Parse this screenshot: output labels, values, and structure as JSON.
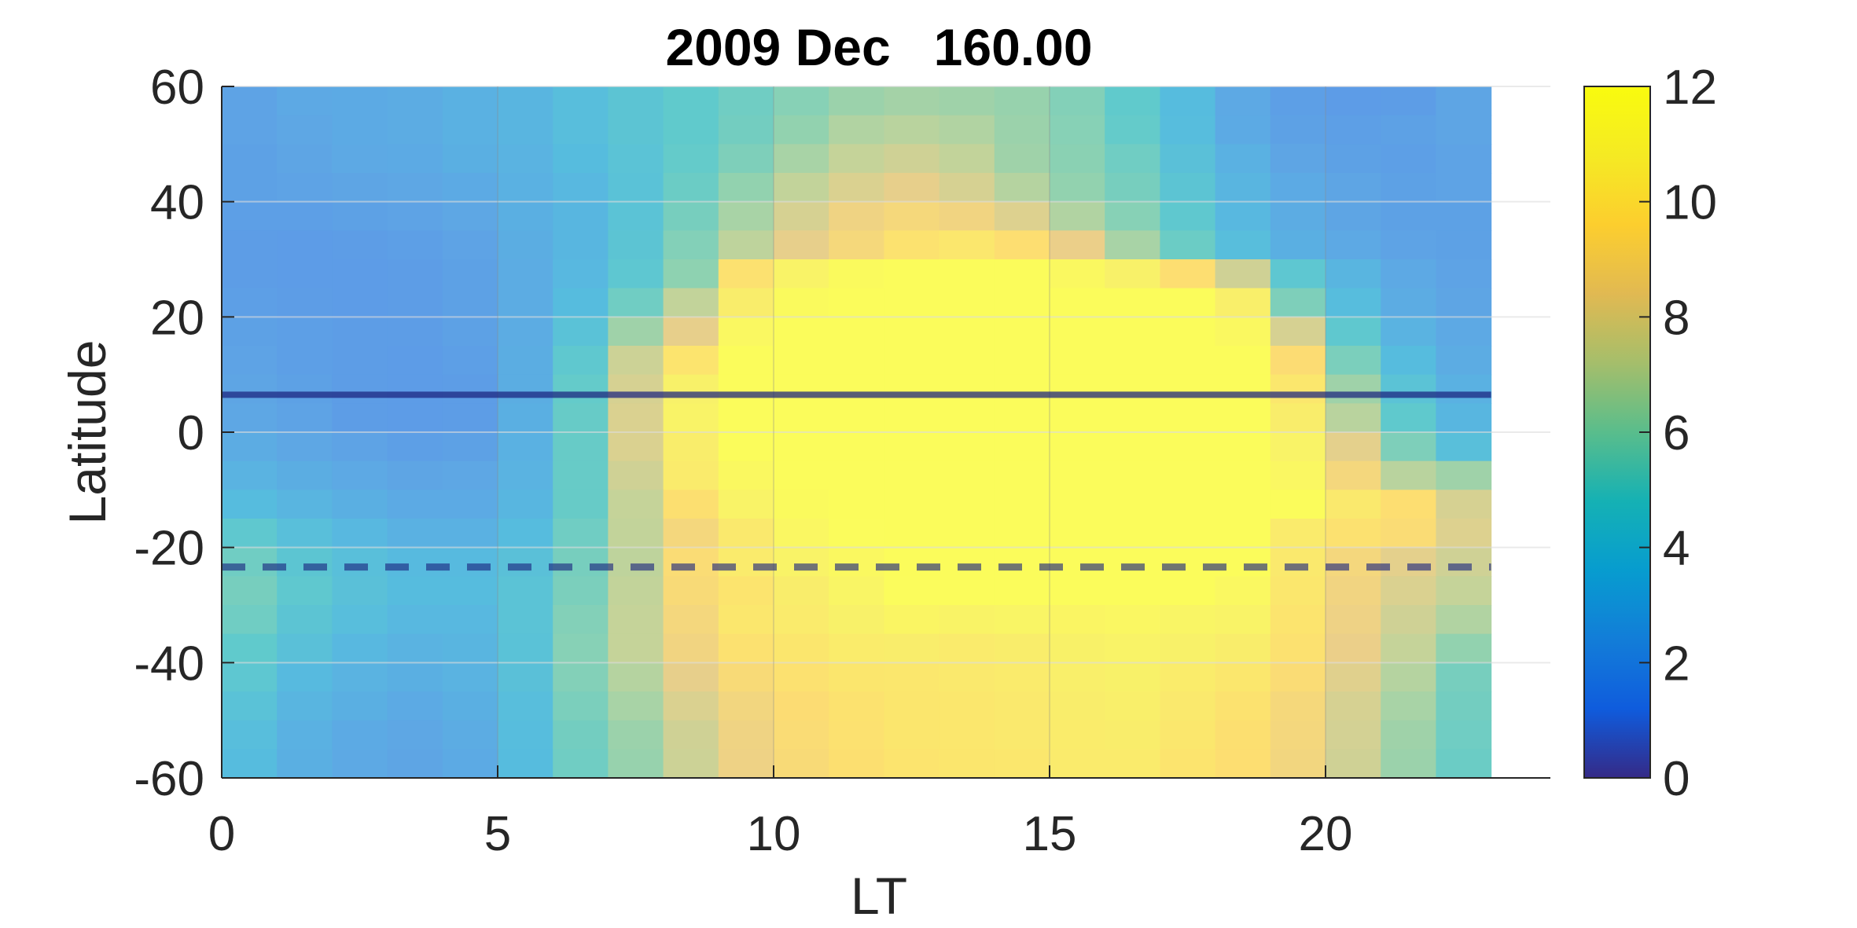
{
  "chart_data": {
    "type": "heatmap",
    "title": "2009 Dec   160.00",
    "xlabel": "LT",
    "ylabel": "Latitude",
    "xlim": [
      0,
      24
    ],
    "ylim": [
      -60,
      60
    ],
    "x_ticks": [
      "0",
      "5",
      "10",
      "15",
      "20"
    ],
    "y_ticks": [
      "60",
      "40",
      "20",
      "0",
      "-20",
      "-40",
      "-60"
    ],
    "colorbar": {
      "ticks": [
        "12",
        "10",
        "8",
        "6",
        "4",
        "2",
        "0"
      ],
      "clim": [
        0,
        12
      ],
      "colormap": "parula"
    },
    "grid": true,
    "cell_width_hours": 1,
    "lat_rows": [
      57.5,
      52.5,
      47.5,
      42.5,
      37.5,
      32.5,
      27.5,
      22.5,
      17.5,
      12.5,
      7.5,
      2.5,
      -2.5,
      -7.5,
      -12.5,
      -17.5,
      -22.5,
      -27.5,
      -32.5,
      -37.5,
      -42.5,
      -47.5,
      -52.5,
      -57.5
    ],
    "lt_columns": [
      0.5,
      1.5,
      2.5,
      3.5,
      4.5,
      5.5,
      6.5,
      7.5,
      8.5,
      9.5,
      10.5,
      11.5,
      12.5,
      13.5,
      14.5,
      15.5,
      16.5,
      17.5,
      18.5,
      19.5,
      20.5,
      21.5,
      22.5
    ],
    "values": [
      [
        2.2,
        2.5,
        2.6,
        2.7,
        3.0,
        3.2,
        3.8,
        4.3,
        4.8,
        5.2,
        5.8,
        6.3,
        6.5,
        6.4,
        6.2,
        5.7,
        4.8,
        3.6,
        2.5,
        2.0,
        1.8,
        1.9,
        2.3
      ],
      [
        2.2,
        2.4,
        2.6,
        2.7,
        3.0,
        3.2,
        3.8,
        4.3,
        4.8,
        5.3,
        6.1,
        6.8,
        7.0,
        6.8,
        6.3,
        5.8,
        4.9,
        3.7,
        2.6,
        2.1,
        2.0,
        2.1,
        2.3
      ],
      [
        2.1,
        2.3,
        2.5,
        2.6,
        2.9,
        3.1,
        3.6,
        4.2,
        4.9,
        5.6,
        6.6,
        7.3,
        7.6,
        7.2,
        6.4,
        5.9,
        5.2,
        4.0,
        3.0,
        2.3,
        2.1,
        2.0,
        2.2
      ],
      [
        2.1,
        2.2,
        2.3,
        2.4,
        2.6,
        3.0,
        3.4,
        4.1,
        5.1,
        6.1,
        7.2,
        7.9,
        8.3,
        7.8,
        6.9,
        6.1,
        5.4,
        4.3,
        3.2,
        2.6,
        2.3,
        2.1,
        2.2
      ],
      [
        2.0,
        2.0,
        2.1,
        2.2,
        2.4,
        2.9,
        3.3,
        4.2,
        5.4,
        6.6,
        7.8,
        8.7,
        9.1,
        8.8,
        8.0,
        6.8,
        5.8,
        4.6,
        3.4,
        2.7,
        2.3,
        2.1,
        2.1
      ],
      [
        1.9,
        1.8,
        1.9,
        2.0,
        2.2,
        2.8,
        3.3,
        4.3,
        5.7,
        7.1,
        8.3,
        9.1,
        9.9,
        10.2,
        9.6,
        8.4,
        6.6,
        5.1,
        3.8,
        2.9,
        2.5,
        2.2,
        2.1
      ],
      [
        1.9,
        1.8,
        1.8,
        1.9,
        2.1,
        2.7,
        3.4,
        4.5,
        6.0,
        9.8,
        11.0,
        11.8,
        12.0,
        12.0,
        12.0,
        11.6,
        10.8,
        9.6,
        7.6,
        4.5,
        3.2,
        2.5,
        2.2
      ],
      [
        2.0,
        1.9,
        1.8,
        1.9,
        2.1,
        2.7,
        3.6,
        5.2,
        7.2,
        10.6,
        11.8,
        12.0,
        12.0,
        12.0,
        12.0,
        12.0,
        12.0,
        12.0,
        10.7,
        5.6,
        3.7,
        2.7,
        2.3
      ],
      [
        2.1,
        2.0,
        1.9,
        1.9,
        2.1,
        2.7,
        4.1,
        6.4,
        8.3,
        11.5,
        12.0,
        12.0,
        12.0,
        12.0,
        12.0,
        12.0,
        12.0,
        12.0,
        11.6,
        7.8,
        4.6,
        3.1,
        2.5
      ],
      [
        2.2,
        2.0,
        1.9,
        1.8,
        2.0,
        2.8,
        4.6,
        7.5,
        10.0,
        12.0,
        12.0,
        12.0,
        12.0,
        12.0,
        12.0,
        12.0,
        12.0,
        12.0,
        12.0,
        9.5,
        5.5,
        3.6,
        2.7
      ],
      [
        2.3,
        2.1,
        1.9,
        1.8,
        1.9,
        2.8,
        4.9,
        7.8,
        10.8,
        12.0,
        12.0,
        12.0,
        12.0,
        12.0,
        12.0,
        12.0,
        12.0,
        12.0,
        12.0,
        10.2,
        6.4,
        4.2,
        3.0
      ],
      [
        2.4,
        2.2,
        1.9,
        1.8,
        1.9,
        2.9,
        5.0,
        7.9,
        11.0,
        12.0,
        12.0,
        12.0,
        12.0,
        12.0,
        12.0,
        12.0,
        12.0,
        12.0,
        12.0,
        10.6,
        7.0,
        4.7,
        3.3
      ],
      [
        2.7,
        2.4,
        2.2,
        2.0,
        2.1,
        3.0,
        5.0,
        7.9,
        10.6,
        12.0,
        12.0,
        12.0,
        12.0,
        12.0,
        12.0,
        12.0,
        12.0,
        12.0,
        12.0,
        11.0,
        8.2,
        5.6,
        3.9
      ],
      [
        3.1,
        2.8,
        2.5,
        2.3,
        2.4,
        3.1,
        5.0,
        7.6,
        10.4,
        11.6,
        12.0,
        12.0,
        12.0,
        12.0,
        12.0,
        12.0,
        12.0,
        12.0,
        12.0,
        11.4,
        9.0,
        7.0,
        6.4
      ],
      [
        3.6,
        3.2,
        2.9,
        2.6,
        2.6,
        3.3,
        5.0,
        7.3,
        9.7,
        11.0,
        11.8,
        12.0,
        12.0,
        12.0,
        12.0,
        12.0,
        12.0,
        12.0,
        12.0,
        12.0,
        10.3,
        9.6,
        7.8
      ],
      [
        4.6,
        3.9,
        3.4,
        3.0,
        3.0,
        3.6,
        5.2,
        7.2,
        9.0,
        10.3,
        11.4,
        11.9,
        12.0,
        12.0,
        12.0,
        12.0,
        12.0,
        12.0,
        12.0,
        10.4,
        9.8,
        9.4,
        8.0
      ],
      [
        5.2,
        4.4,
        3.9,
        3.5,
        3.5,
        4.0,
        5.4,
        7.1,
        9.4,
        10.4,
        11.0,
        11.6,
        12.0,
        12.0,
        12.0,
        12.0,
        12.0,
        12.0,
        12.0,
        10.3,
        9.0,
        8.2,
        7.6
      ],
      [
        5.4,
        4.6,
        4.0,
        3.6,
        3.6,
        4.2,
        5.5,
        7.2,
        9.3,
        10.0,
        10.6,
        11.2,
        11.9,
        12.0,
        12.0,
        12.0,
        12.0,
        12.0,
        11.5,
        10.2,
        8.8,
        7.9,
        7.3
      ],
      [
        5.2,
        4.3,
        3.8,
        3.4,
        3.4,
        4.2,
        5.7,
        7.3,
        9.0,
        10.2,
        10.4,
        10.8,
        11.3,
        11.1,
        11.2,
        11.3,
        11.4,
        11.2,
        11.0,
        10.0,
        8.6,
        7.6,
        6.8
      ],
      [
        4.8,
        4.0,
        3.4,
        3.1,
        3.2,
        4.1,
        5.8,
        7.3,
        8.8,
        9.8,
        10.1,
        10.5,
        10.6,
        10.4,
        10.6,
        10.9,
        11.0,
        10.8,
        10.6,
        9.8,
        8.4,
        7.3,
        6.1
      ],
      [
        4.5,
        3.5,
        3.1,
        2.9,
        3.1,
        4.0,
        5.7,
        6.9,
        8.3,
        9.3,
        9.8,
        10.1,
        10.2,
        10.3,
        10.4,
        10.7,
        10.8,
        10.5,
        10.2,
        9.4,
        8.1,
        6.9,
        5.4
      ],
      [
        4.1,
        3.2,
        2.9,
        2.6,
        2.9,
        3.8,
        5.5,
        6.6,
        7.9,
        8.9,
        9.5,
        9.9,
        10.1,
        10.2,
        10.3,
        10.6,
        10.7,
        10.3,
        9.9,
        9.1,
        7.8,
        6.6,
        5.3
      ],
      [
        3.8,
        3.0,
        2.6,
        2.4,
        2.7,
        3.7,
        5.3,
        6.3,
        7.6,
        8.7,
        9.4,
        9.8,
        10.1,
        10.2,
        10.3,
        10.5,
        10.6,
        10.2,
        9.7,
        9.0,
        7.7,
        6.4,
        5.2
      ],
      [
        3.6,
        2.9,
        2.5,
        2.3,
        2.6,
        3.6,
        5.2,
        6.2,
        7.5,
        8.6,
        9.3,
        9.7,
        10.0,
        10.1,
        10.2,
        10.4,
        10.4,
        10.0,
        9.6,
        8.9,
        7.6,
        6.3,
        5.1
      ]
    ],
    "reference_lines": [
      {
        "style": "solid",
        "latitude": 6.5
      },
      {
        "style": "dashed",
        "latitude": -23.4
      }
    ]
  }
}
